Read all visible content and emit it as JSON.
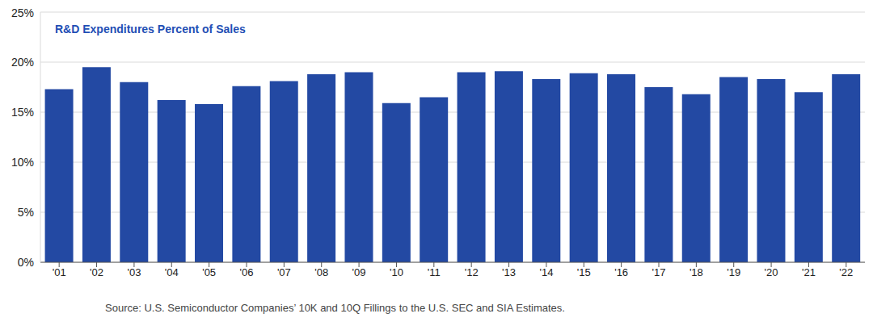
{
  "chart_data": {
    "type": "bar",
    "title": "R&D Expenditures Percent of Sales",
    "source": "Source: U.S. Semiconductor Companies’ 10K and 10Q Fillings to the U.S. SEC and SIA Estimates.",
    "categories": [
      "'01",
      "'02",
      "'03",
      "'04",
      "'05",
      "'06",
      "'07",
      "'08",
      "'09",
      "'10",
      "'11",
      "'12",
      "'13",
      "'14",
      "'15",
      "'16",
      "'17",
      "'18",
      "'19",
      "'20",
      "'21",
      "'22"
    ],
    "values": [
      17.3,
      19.5,
      18.0,
      16.2,
      15.8,
      17.6,
      18.1,
      18.8,
      19.0,
      15.9,
      16.5,
      19.0,
      19.1,
      18.3,
      18.9,
      18.8,
      17.5,
      16.8,
      18.5,
      18.3,
      17.0,
      18.8
    ],
    "color": "#2349a3",
    "ylim": [
      0,
      25
    ],
    "yticks": [
      {
        "value": 0,
        "label": "0%"
      },
      {
        "value": 5,
        "label": "5%"
      },
      {
        "value": 10,
        "label": "10%"
      },
      {
        "value": 15,
        "label": "15%"
      },
      {
        "value": 20,
        "label": "20%"
      },
      {
        "value": 25,
        "label": "25%"
      }
    ],
    "grid": true
  }
}
